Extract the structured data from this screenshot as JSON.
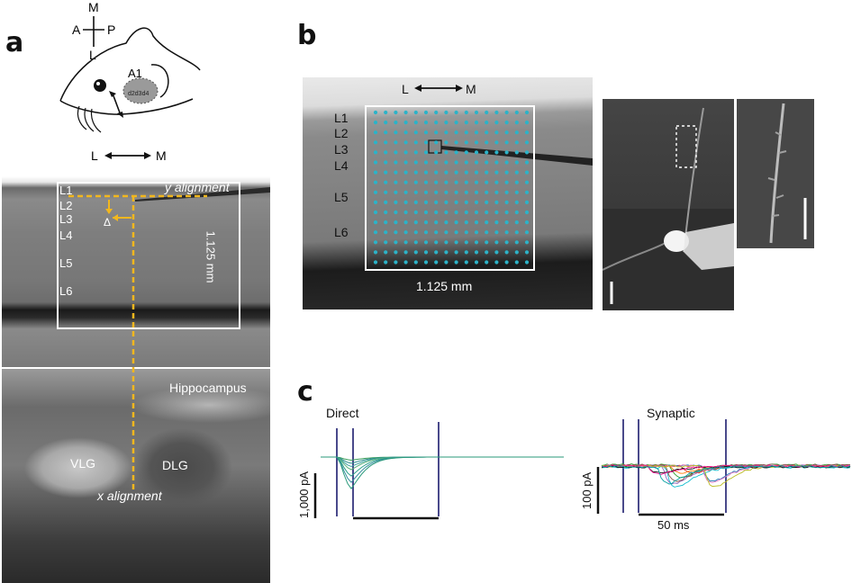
{
  "panel_a": {
    "letter": "a",
    "compass": {
      "m": "M",
      "a": "A",
      "p": "P",
      "l": "L"
    },
    "brain": {
      "a1": "A1",
      "region_digits": "d2d3d4"
    },
    "lm_left": "L",
    "lm_right": "M",
    "y_alignment": "y alignment",
    "x_alignment": "x alignment",
    "delta": "Δ",
    "layers": [
      "L1",
      "L2",
      "L3",
      "L4",
      "L5",
      "L6"
    ],
    "scale_vertical": "1.125 mm",
    "hippocampus": "Hippocampus",
    "vlg": "VLG",
    "dlg": "DLG"
  },
  "panel_b": {
    "letter": "b",
    "lm_left": "L",
    "lm_right": "M",
    "layers": [
      "L1",
      "L2",
      "L3",
      "L4",
      "L5",
      "L6"
    ],
    "scale": "1.125 mm",
    "grid_color": "#2bb3c8"
  },
  "panel_c": {
    "letter": "c",
    "direct_title": "Direct",
    "synaptic_title": "Synaptic",
    "direct_scale": "1,000 pA",
    "synaptic_scale": "100 pA",
    "time_scale": "50 ms",
    "marker_color": "#1c1c6e"
  }
}
